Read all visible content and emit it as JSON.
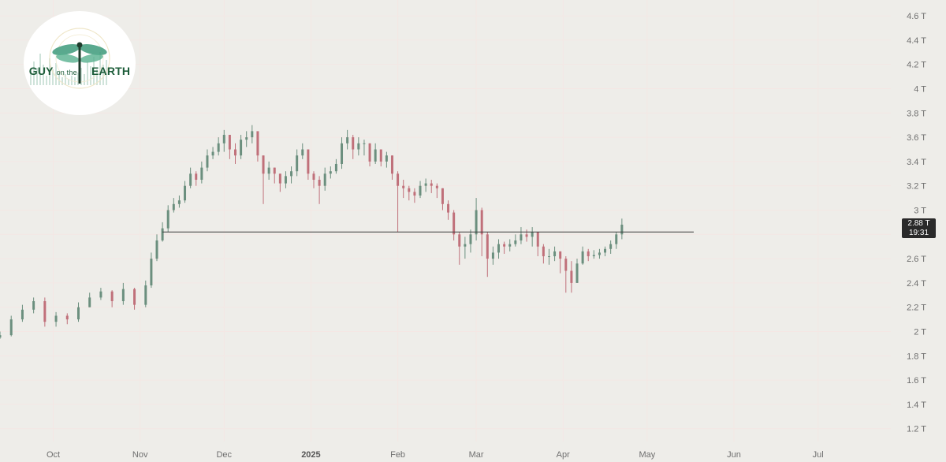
{
  "chart_data": {
    "type": "candlestick",
    "title": "",
    "xlabel": "",
    "ylabel": "",
    "y_tick_labels": [
      "1.2 T",
      "1.4 T",
      "1.6 T",
      "1.8 T",
      "2 T",
      "2.2 T",
      "2.4 T",
      "2.6 T",
      "2.8 T",
      "3 T",
      "3.2 T",
      "3.4 T",
      "3.6 T",
      "3.8 T",
      "4 T",
      "4.2 T",
      "4.4 T",
      "4.6 T"
    ],
    "y_ticks": [
      1.2,
      1.4,
      1.6,
      1.8,
      2.0,
      2.2,
      2.4,
      2.6,
      2.8,
      3.0,
      3.2,
      3.4,
      3.6,
      3.8,
      4.0,
      4.2,
      4.4,
      4.6
    ],
    "x_tick_labels": [
      {
        "label": "Oct",
        "date": "2024-10-01",
        "bold": false
      },
      {
        "label": "Nov",
        "date": "2024-11-01",
        "bold": false
      },
      {
        "label": "Dec",
        "date": "2024-12-01",
        "bold": false
      },
      {
        "label": "2025",
        "date": "2025-01-01",
        "bold": true
      },
      {
        "label": "Feb",
        "date": "2025-02-01",
        "bold": false
      },
      {
        "label": "Mar",
        "date": "2025-03-01",
        "bold": false
      },
      {
        "label": "Apr",
        "date": "2025-04-01",
        "bold": false
      },
      {
        "label": "May",
        "date": "2025-05-01",
        "bold": false
      },
      {
        "label": "Jun",
        "date": "2025-06-01",
        "bold": false
      },
      {
        "label": "Jul",
        "date": "2025-07-01",
        "bold": false
      }
    ],
    "ylim": [
      1.1,
      4.68
    ],
    "xlim": [
      "2024-09-12",
      "2025-07-27"
    ],
    "grid": true,
    "up_color": "#6b8f7e",
    "down_color": "#c0707a",
    "series": [
      {
        "dates": [
          "2024-09-12",
          "2024-09-16",
          "2024-09-20",
          "2024-09-24",
          "2024-09-28",
          "2024-10-02",
          "2024-10-06",
          "2024-10-10",
          "2024-10-14",
          "2024-10-18",
          "2024-10-22",
          "2024-10-26",
          "2024-10-30",
          "2024-11-03",
          "2024-11-05",
          "2024-11-07",
          "2024-11-09",
          "2024-11-11",
          "2024-11-13",
          "2024-11-15",
          "2024-11-17",
          "2024-11-19",
          "2024-11-21",
          "2024-11-23",
          "2024-11-25",
          "2024-11-27",
          "2024-11-29",
          "2024-12-01",
          "2024-12-03",
          "2024-12-05",
          "2024-12-07",
          "2024-12-09",
          "2024-12-11",
          "2024-12-13",
          "2024-12-15",
          "2024-12-17",
          "2024-12-19",
          "2024-12-21",
          "2024-12-23",
          "2024-12-25",
          "2024-12-27",
          "2024-12-29",
          "2024-12-31",
          "2025-01-02",
          "2025-01-04",
          "2025-01-06",
          "2025-01-08",
          "2025-01-10",
          "2025-01-12",
          "2025-01-14",
          "2025-01-16",
          "2025-01-18",
          "2025-01-20",
          "2025-01-22",
          "2025-01-24",
          "2025-01-26",
          "2025-01-28",
          "2025-01-30",
          "2025-02-01",
          "2025-02-03",
          "2025-02-05",
          "2025-02-07",
          "2025-02-09",
          "2025-02-11",
          "2025-02-13",
          "2025-02-15",
          "2025-02-17",
          "2025-02-19",
          "2025-02-21",
          "2025-02-23",
          "2025-02-25",
          "2025-02-27",
          "2025-03-01",
          "2025-03-03",
          "2025-03-05",
          "2025-03-07",
          "2025-03-09",
          "2025-03-11",
          "2025-03-13",
          "2025-03-15",
          "2025-03-17",
          "2025-03-19",
          "2025-03-21",
          "2025-03-23",
          "2025-03-25",
          "2025-03-27",
          "2025-03-29",
          "2025-03-31",
          "2025-04-02",
          "2025-04-04",
          "2025-04-06",
          "2025-04-08",
          "2025-04-10",
          "2025-04-12",
          "2025-04-14",
          "2025-04-16",
          "2025-04-18",
          "2025-04-20",
          "2025-04-22"
        ],
        "close": [
          1.97,
          2.1,
          2.18,
          2.25,
          2.08,
          2.13,
          2.1,
          2.2,
          2.28,
          2.33,
          2.25,
          2.35,
          2.22,
          2.38,
          2.6,
          2.75,
          2.85,
          3.0,
          3.05,
          3.08,
          3.2,
          3.3,
          3.25,
          3.35,
          3.45,
          3.48,
          3.55,
          3.62,
          3.5,
          3.45,
          3.58,
          3.6,
          3.65,
          3.45,
          3.3,
          3.35,
          3.3,
          3.22,
          3.28,
          3.32,
          3.45,
          3.5,
          3.3,
          3.25,
          3.2,
          3.3,
          3.32,
          3.38,
          3.55,
          3.6,
          3.5,
          3.55,
          3.55,
          3.4,
          3.5,
          3.4,
          3.45,
          3.3,
          3.2,
          3.18,
          3.15,
          3.12,
          3.2,
          3.22,
          3.2,
          3.18,
          3.05,
          2.98,
          2.8,
          2.7,
          2.72,
          2.8,
          3.0,
          2.8,
          2.6,
          2.65,
          2.72,
          2.7,
          2.72,
          2.75,
          2.8,
          2.78,
          2.82,
          2.7,
          2.62,
          2.62,
          2.66,
          2.6,
          2.5,
          2.4,
          2.56,
          2.66,
          2.62,
          2.63,
          2.65,
          2.68,
          2.72,
          2.8,
          2.88
        ],
        "high": [
          2.0,
          2.13,
          2.22,
          2.28,
          2.28,
          2.16,
          2.15,
          2.24,
          2.32,
          2.36,
          2.34,
          2.4,
          2.36,
          2.42,
          2.65,
          2.8,
          2.9,
          3.04,
          3.1,
          3.12,
          3.24,
          3.35,
          3.32,
          3.4,
          3.5,
          3.52,
          3.6,
          3.66,
          3.62,
          3.55,
          3.62,
          3.65,
          3.7,
          3.64,
          3.45,
          3.4,
          3.35,
          3.3,
          3.32,
          3.36,
          3.5,
          3.55,
          3.5,
          3.32,
          3.28,
          3.35,
          3.36,
          3.42,
          3.6,
          3.66,
          3.62,
          3.6,
          3.58,
          3.55,
          3.55,
          3.5,
          3.48,
          3.45,
          3.32,
          3.25,
          3.2,
          3.18,
          3.24,
          3.26,
          3.25,
          3.22,
          3.18,
          3.08,
          3.0,
          2.82,
          2.78,
          2.84,
          3.1,
          3.02,
          2.82,
          2.7,
          2.76,
          2.74,
          2.76,
          2.8,
          2.86,
          2.84,
          2.86,
          2.82,
          2.72,
          2.68,
          2.7,
          2.66,
          2.62,
          2.58,
          2.6,
          2.7,
          2.68,
          2.67,
          2.68,
          2.7,
          2.75,
          2.82,
          2.93
        ],
        "low": [
          1.94,
          1.96,
          2.08,
          2.15,
          2.04,
          2.04,
          2.06,
          2.08,
          2.2,
          2.26,
          2.2,
          2.22,
          2.18,
          2.2,
          2.36,
          2.58,
          2.74,
          2.82,
          2.98,
          3.02,
          3.06,
          3.18,
          3.2,
          3.22,
          3.32,
          3.42,
          3.45,
          3.48,
          3.42,
          3.38,
          3.42,
          3.52,
          3.55,
          3.4,
          3.05,
          3.25,
          3.22,
          3.15,
          3.18,
          3.22,
          3.28,
          3.42,
          3.25,
          3.18,
          3.05,
          3.16,
          3.26,
          3.3,
          3.34,
          3.5,
          3.42,
          3.45,
          3.45,
          3.36,
          3.38,
          3.36,
          3.35,
          3.25,
          2.82,
          3.1,
          3.08,
          3.06,
          3.1,
          3.15,
          3.14,
          3.1,
          3.0,
          2.92,
          2.75,
          2.55,
          2.6,
          2.65,
          2.75,
          2.62,
          2.45,
          2.55,
          2.6,
          2.64,
          2.66,
          2.7,
          2.72,
          2.74,
          2.7,
          2.62,
          2.56,
          2.55,
          2.58,
          2.48,
          2.32,
          2.32,
          2.4,
          2.55,
          2.58,
          2.6,
          2.6,
          2.62,
          2.64,
          2.68,
          2.76
        ]
      }
    ],
    "reference_line": {
      "value": 2.82,
      "from": "2024-11-09",
      "to": "2025-04-23"
    },
    "last_price_label": "2.88 T",
    "countdown_label": "19:31"
  },
  "logo": {
    "text_left": "GUY",
    "text_mid": "on the",
    "text_right": "EARTH"
  },
  "colors": {
    "background": "#eeede9",
    "grid": "#f4e7e4",
    "line": "#3c3c3c",
    "tag_bg": "#2a2a2a"
  }
}
